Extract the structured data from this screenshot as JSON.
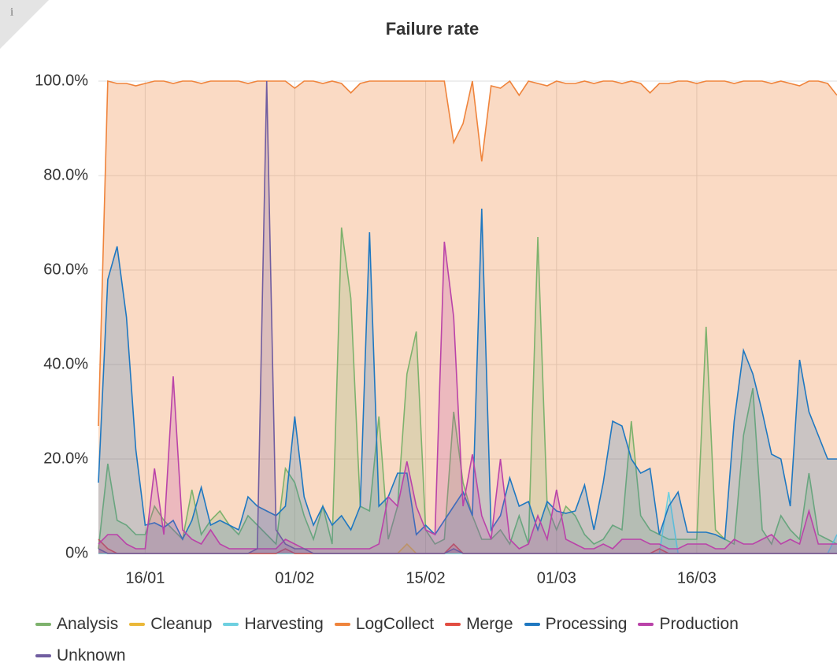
{
  "info_icon": "i",
  "chart_data": {
    "type": "line",
    "title": "Failure rate",
    "x": [
      "11/01",
      "12/01",
      "13/01",
      "14/01",
      "15/01",
      "16/01",
      "17/01",
      "18/01",
      "19/01",
      "20/01",
      "21/01",
      "22/01",
      "23/01",
      "24/01",
      "25/01",
      "26/01",
      "27/01",
      "28/01",
      "29/01",
      "30/01",
      "31/01",
      "01/02",
      "02/02",
      "03/02",
      "04/02",
      "05/02",
      "06/02",
      "07/02",
      "08/02",
      "09/02",
      "10/02",
      "11/02",
      "12/02",
      "13/02",
      "14/02",
      "15/02",
      "16/02",
      "17/02",
      "18/02",
      "19/02",
      "20/02",
      "21/02",
      "22/02",
      "23/02",
      "24/02",
      "25/02",
      "26/02",
      "27/02",
      "28/02",
      "01/03",
      "02/03",
      "03/03",
      "04/03",
      "05/03",
      "06/03",
      "07/03",
      "08/03",
      "09/03",
      "10/03",
      "11/03",
      "12/03",
      "13/03",
      "14/03",
      "15/03",
      "16/03",
      "17/03",
      "18/03",
      "19/03",
      "20/03",
      "21/03",
      "22/03",
      "23/03",
      "24/03",
      "25/03",
      "26/03",
      "27/03",
      "28/03",
      "29/03",
      "30/03",
      "31/03"
    ],
    "xlim": [
      "11/01",
      "31/03"
    ],
    "xticks": [
      "16/01",
      "01/02",
      "15/02",
      "01/03",
      "16/03"
    ],
    "ylim": [
      0,
      100
    ],
    "yticks": [
      {
        "value": 0,
        "label": "0%"
      },
      {
        "value": 20,
        "label": "20.0%"
      },
      {
        "value": 40,
        "label": "40.0%"
      },
      {
        "value": 60,
        "label": "60.0%"
      },
      {
        "value": 80,
        "label": "80.0%"
      },
      {
        "value": 100,
        "label": "100.0%"
      }
    ],
    "grid": true,
    "legend": "bottom",
    "series": [
      {
        "name": "Analysis",
        "color": "#7eb26d",
        "values": [
          1,
          19,
          7,
          6,
          4,
          4,
          10,
          7,
          5,
          3,
          13.5,
          4,
          7,
          9,
          6,
          4,
          8,
          6,
          4,
          2,
          18,
          15,
          8,
          3,
          10,
          2,
          69,
          54,
          10,
          9,
          29,
          3,
          10,
          38,
          47,
          5,
          2,
          3,
          30,
          15,
          8,
          3,
          3,
          5,
          2,
          8,
          2,
          67,
          10,
          5,
          10,
          8,
          4,
          2,
          3,
          6,
          5,
          28,
          8,
          5,
          4,
          3,
          3,
          3,
          3,
          48,
          5,
          3,
          2,
          25,
          35,
          5,
          2,
          8,
          5,
          3,
          17,
          4,
          3,
          2
        ]
      },
      {
        "name": "Cleanup",
        "color": "#eab839",
        "values": [
          0,
          0,
          0,
          0,
          0,
          0,
          0,
          0,
          0,
          0,
          0,
          0,
          0,
          0,
          0,
          0,
          0,
          0,
          0,
          0,
          0,
          0,
          0,
          0,
          0,
          0,
          0,
          0,
          0,
          0,
          0,
          0,
          0,
          2,
          0,
          0,
          0,
          0,
          0,
          0,
          0,
          0,
          0,
          0,
          0,
          0,
          0,
          0,
          0,
          0,
          0,
          0,
          0,
          0,
          0,
          0,
          0,
          0,
          0,
          0,
          0,
          0,
          0,
          0,
          0,
          0,
          0,
          0,
          0,
          0,
          0,
          0,
          0,
          0,
          0,
          0,
          0,
          0,
          0,
          0
        ]
      },
      {
        "name": "Harvesting",
        "color": "#6ed0e0",
        "values": [
          0,
          0,
          0,
          0,
          0,
          0,
          0,
          0,
          0,
          0,
          0,
          0,
          0,
          0,
          0,
          0,
          0,
          0,
          0,
          0,
          0,
          0,
          0,
          0,
          0,
          0,
          0,
          0,
          0,
          0,
          0,
          0,
          0,
          0,
          0,
          0,
          0,
          0,
          0,
          0,
          0,
          0,
          0,
          0,
          0,
          0,
          0,
          0,
          0,
          0,
          0,
          0,
          0,
          0,
          0,
          0,
          0,
          0,
          0,
          0,
          0,
          13,
          0,
          0,
          0,
          0,
          0,
          0,
          0,
          0,
          0,
          0,
          0,
          0,
          0,
          0,
          0,
          0,
          0,
          4
        ]
      },
      {
        "name": "LogCollect",
        "color": "#ef843c",
        "values": [
          27,
          100,
          99.5,
          99.5,
          99,
          99.5,
          100,
          100,
          99.5,
          100,
          100,
          99.5,
          100,
          100,
          100,
          100,
          99.5,
          100,
          100,
          100,
          100,
          98.5,
          100,
          100,
          99.5,
          100,
          99.5,
          97.5,
          99.5,
          100,
          100,
          100,
          100,
          100,
          100,
          100,
          100,
          100,
          87,
          91,
          100,
          83,
          99,
          98.5,
          100,
          97,
          100,
          99.5,
          99,
          100,
          99.5,
          99.5,
          100,
          99.5,
          100,
          100,
          99.5,
          100,
          99.5,
          97.5,
          99.5,
          99.5,
          100,
          100,
          99.5,
          100,
          100,
          100,
          99.5,
          100,
          100,
          100,
          99.5,
          100,
          99.5,
          99,
          100,
          100,
          99.5,
          97
        ]
      },
      {
        "name": "Merge",
        "color": "#e24d42",
        "values": [
          3,
          1,
          0,
          0,
          0,
          0,
          0,
          0,
          0,
          0,
          0,
          0,
          0,
          0,
          0,
          0,
          0,
          0,
          0,
          0,
          1,
          0,
          0,
          0,
          0,
          0,
          0,
          0,
          0,
          0,
          0,
          0,
          0,
          0,
          0,
          0,
          0,
          0,
          2,
          0,
          0,
          0,
          0,
          0,
          0,
          0,
          0,
          0,
          0,
          0,
          0,
          0,
          0,
          0,
          0,
          0,
          0,
          0,
          0,
          0,
          1,
          0,
          0,
          0,
          0,
          0,
          0,
          0,
          0,
          0,
          0,
          0,
          0,
          0,
          0,
          0,
          0,
          0,
          0,
          0
        ]
      },
      {
        "name": "Processing",
        "color": "#1f78c1",
        "values": [
          15,
          58,
          65,
          50,
          22,
          6,
          6.5,
          5.5,
          7,
          3,
          7,
          14,
          6,
          7,
          6,
          5,
          12,
          10,
          9,
          8,
          10,
          29,
          12,
          6,
          10,
          6,
          8,
          5,
          10,
          68,
          10,
          12,
          17,
          17,
          4,
          6,
          4,
          7,
          10,
          13,
          8,
          73,
          5,
          8,
          16,
          10,
          11,
          5,
          11,
          9,
          8.5,
          9,
          14.5,
          5,
          15,
          28,
          27,
          20,
          17,
          18,
          4,
          10,
          13,
          4.5,
          4.5,
          4.5,
          4,
          3,
          28,
          43,
          38,
          30,
          21,
          20,
          10,
          41,
          30,
          25,
          20,
          20
        ]
      },
      {
        "name": "Production",
        "color": "#ba43a9",
        "values": [
          2,
          4,
          4,
          2,
          1,
          1,
          18,
          4,
          37.5,
          5,
          3,
          2,
          5,
          2,
          1,
          1,
          1,
          1,
          1,
          1,
          3,
          2,
          1,
          1,
          1,
          1,
          1,
          1,
          1,
          1,
          2,
          12,
          10,
          19.5,
          10,
          5,
          4,
          66,
          50,
          10,
          21,
          8,
          3,
          20,
          3,
          1,
          2,
          8,
          3,
          13.5,
          3,
          2,
          1,
          1,
          2,
          1,
          3,
          3,
          3,
          2,
          2,
          1,
          1,
          2,
          2,
          2,
          1,
          1,
          3,
          2,
          2,
          3,
          4,
          2,
          3,
          2,
          9,
          2,
          2,
          2
        ]
      },
      {
        "name": "Unknown",
        "color": "#705da0",
        "values": [
          1,
          0,
          0,
          0,
          0,
          0,
          0,
          0,
          0,
          0,
          0,
          0,
          0,
          0,
          0,
          0,
          0,
          1,
          100,
          5,
          2,
          1,
          1,
          0,
          0,
          0,
          0,
          0,
          0,
          0,
          0,
          0,
          0,
          0,
          0,
          0,
          0,
          0,
          1,
          0,
          0,
          0,
          0,
          0,
          0,
          0,
          0,
          0,
          0,
          0,
          0,
          0,
          0,
          0,
          0,
          0,
          0,
          0,
          0,
          0,
          0,
          0,
          0,
          0,
          0,
          0,
          0,
          0,
          0,
          0,
          0,
          0,
          0,
          0,
          0,
          0,
          0,
          0,
          0,
          0
        ]
      }
    ]
  }
}
